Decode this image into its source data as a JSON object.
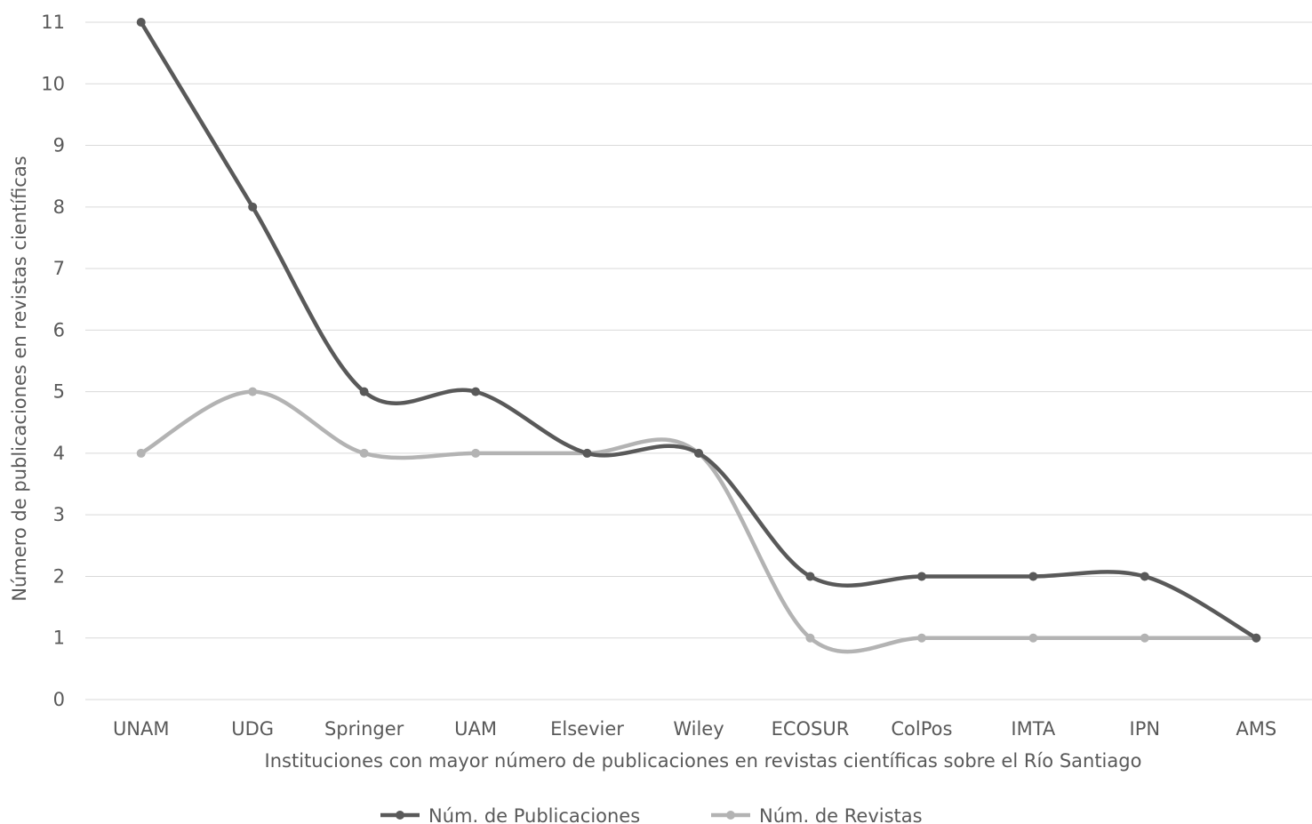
{
  "chart_data": {
    "type": "line",
    "smooth": true,
    "categories": [
      "UNAM",
      "UDG",
      "Springer",
      "UAM",
      "Elsevier",
      "Wiley",
      "ECOSUR",
      "ColPos",
      "IMTA",
      "IPN",
      "AMS"
    ],
    "series": [
      {
        "name": "Núm. de Publicaciones",
        "values": [
          11,
          8,
          5,
          5,
          4,
          4,
          2,
          2,
          2,
          2,
          1
        ],
        "color": "#595959"
      },
      {
        "name": "Núm. de Revistas",
        "values": [
          4,
          5,
          4,
          4,
          4,
          4,
          1,
          1,
          1,
          1,
          1
        ],
        "color": "#b3b3b3"
      }
    ],
    "xlabel": "Instituciones con mayor número de publicaciones en revistas científicas sobre el Río Santiago",
    "ylabel": "Número de publicaciones en revistas científicas",
    "ylim": [
      0,
      11
    ],
    "yticks": [
      0,
      1,
      2,
      3,
      4,
      5,
      6,
      7,
      8,
      9,
      10,
      11
    ],
    "grid": true,
    "legend_position": "bottom"
  }
}
